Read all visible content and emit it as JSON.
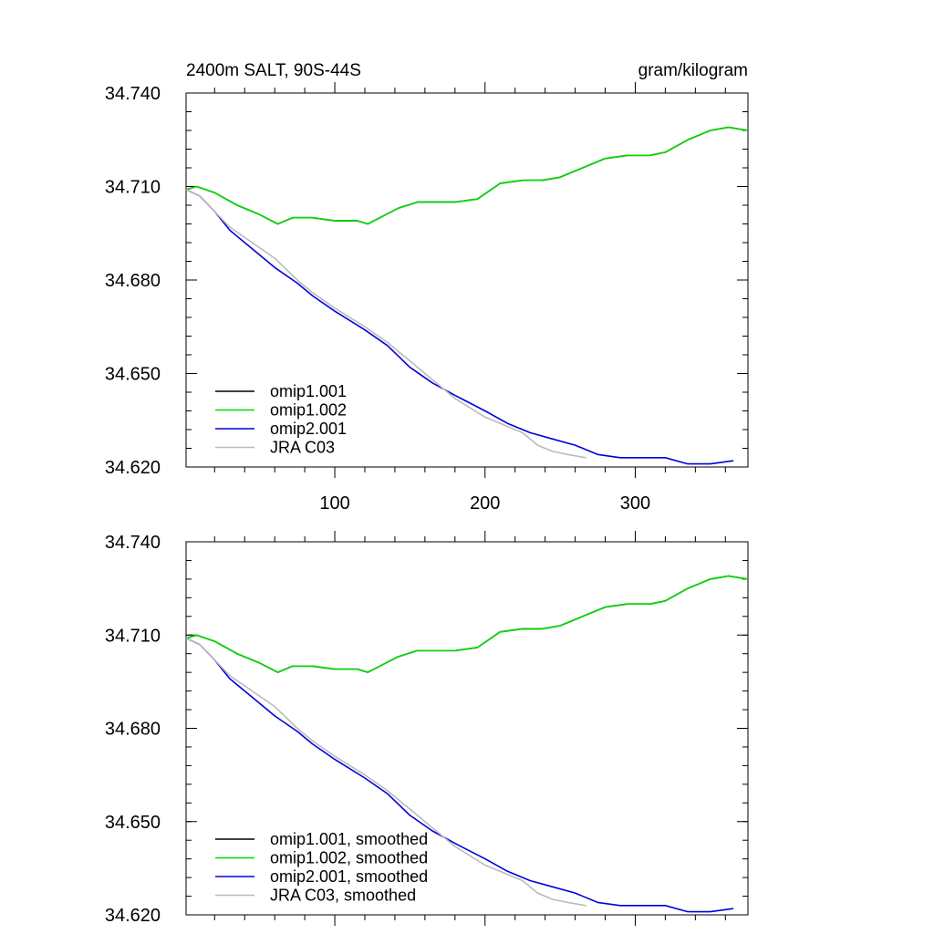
{
  "chart_data": [
    {
      "type": "line",
      "title_left": "2400m SALT, 90S-44S",
      "title_right": "gram/kilogram",
      "xlim": [
        1,
        375
      ],
      "ylim": [
        34.62,
        34.74
      ],
      "x_ticks": [
        100,
        200,
        300
      ],
      "x_tick_labels": [
        "100",
        "200",
        "300"
      ],
      "y_ticks": [
        34.62,
        34.65,
        34.68,
        34.71,
        34.74
      ],
      "y_tick_labels": [
        "34.620",
        "34.650",
        "34.680",
        "34.710",
        "34.740"
      ],
      "legend_position": "bottom-left",
      "series": [
        {
          "name": "omip1.001",
          "color": "#000000",
          "x": [
            1,
            8,
            20,
            35,
            50,
            62,
            72,
            85,
            100,
            115,
            122,
            130,
            142,
            155,
            170,
            180,
            195,
            210,
            225,
            238,
            250,
            265,
            280,
            295,
            310,
            320,
            335,
            350,
            362,
            375
          ],
          "y": [
            34.709,
            34.71,
            34.708,
            34.704,
            34.701,
            34.698,
            34.7,
            34.7,
            34.699,
            34.699,
            34.698,
            34.7,
            34.703,
            34.705,
            34.705,
            34.705,
            34.706,
            34.711,
            34.712,
            34.712,
            34.713,
            34.716,
            34.719,
            34.72,
            34.72,
            34.721,
            34.725,
            34.728,
            34.729,
            34.728
          ]
        },
        {
          "name": "omip1.002",
          "color": "#00dd00",
          "x": [
            1,
            8,
            20,
            35,
            50,
            62,
            72,
            85,
            100,
            115,
            122,
            130,
            142,
            155,
            170,
            180,
            195,
            210,
            225,
            238,
            250,
            265,
            280,
            295,
            310,
            320,
            335,
            350,
            362,
            375
          ],
          "y": [
            34.709,
            34.71,
            34.708,
            34.704,
            34.701,
            34.698,
            34.7,
            34.7,
            34.699,
            34.699,
            34.698,
            34.7,
            34.703,
            34.705,
            34.705,
            34.705,
            34.706,
            34.711,
            34.712,
            34.712,
            34.713,
            34.716,
            34.719,
            34.72,
            34.72,
            34.721,
            34.725,
            34.728,
            34.729,
            34.728
          ]
        },
        {
          "name": "omip2.001",
          "color": "#0000dd",
          "x": [
            1,
            10,
            20,
            30,
            45,
            60,
            75,
            85,
            100,
            120,
            135,
            150,
            165,
            180,
            200,
            215,
            230,
            245,
            260,
            275,
            290,
            305,
            320,
            335,
            350,
            365
          ],
          "y": [
            34.709,
            34.707,
            34.702,
            34.696,
            34.69,
            34.684,
            34.679,
            34.675,
            34.67,
            34.664,
            34.659,
            34.652,
            34.647,
            34.643,
            34.638,
            34.634,
            34.631,
            34.629,
            34.627,
            34.624,
            34.623,
            34.623,
            34.623,
            34.621,
            34.621,
            34.622
          ]
        },
        {
          "name": "JRA C03",
          "color": "#bbbbbb",
          "x": [
            1,
            10,
            20,
            30,
            45,
            60,
            75,
            85,
            100,
            120,
            135,
            150,
            165,
            180,
            200,
            215,
            225,
            235,
            245,
            255,
            267
          ],
          "y": [
            34.709,
            34.707,
            34.702,
            34.697,
            34.692,
            34.687,
            34.68,
            34.676,
            34.671,
            34.665,
            34.66,
            34.654,
            34.648,
            34.642,
            34.636,
            34.633,
            34.631,
            34.627,
            34.625,
            34.624,
            34.623
          ]
        }
      ]
    },
    {
      "type": "line",
      "xlim": [
        1,
        375
      ],
      "ylim": [
        34.62,
        34.74
      ],
      "x_ticks": [
        100,
        200,
        300
      ],
      "y_ticks": [
        34.62,
        34.65,
        34.68,
        34.71,
        34.74
      ],
      "y_tick_labels": [
        "34.620",
        "34.650",
        "34.680",
        "34.710",
        "34.740"
      ],
      "legend_position": "bottom-left",
      "series": [
        {
          "name": "omip1.001, smoothed",
          "color": "#000000",
          "x": [
            1,
            8,
            20,
            35,
            50,
            62,
            72,
            85,
            100,
            115,
            122,
            130,
            142,
            155,
            170,
            180,
            195,
            210,
            225,
            238,
            250,
            265,
            280,
            295,
            310,
            320,
            335,
            350,
            362,
            375
          ],
          "y": [
            34.709,
            34.71,
            34.708,
            34.704,
            34.701,
            34.698,
            34.7,
            34.7,
            34.699,
            34.699,
            34.698,
            34.7,
            34.703,
            34.705,
            34.705,
            34.705,
            34.706,
            34.711,
            34.712,
            34.712,
            34.713,
            34.716,
            34.719,
            34.72,
            34.72,
            34.721,
            34.725,
            34.728,
            34.729,
            34.728
          ]
        },
        {
          "name": "omip1.002, smoothed",
          "color": "#00dd00",
          "x": [
            1,
            8,
            20,
            35,
            50,
            62,
            72,
            85,
            100,
            115,
            122,
            130,
            142,
            155,
            170,
            180,
            195,
            210,
            225,
            238,
            250,
            265,
            280,
            295,
            310,
            320,
            335,
            350,
            362,
            375
          ],
          "y": [
            34.709,
            34.71,
            34.708,
            34.704,
            34.701,
            34.698,
            34.7,
            34.7,
            34.699,
            34.699,
            34.698,
            34.7,
            34.703,
            34.705,
            34.705,
            34.705,
            34.706,
            34.711,
            34.712,
            34.712,
            34.713,
            34.716,
            34.719,
            34.72,
            34.72,
            34.721,
            34.725,
            34.728,
            34.729,
            34.728
          ]
        },
        {
          "name": "omip2.001, smoothed",
          "color": "#0000dd",
          "x": [
            1,
            10,
            20,
            30,
            45,
            60,
            75,
            85,
            100,
            120,
            135,
            150,
            165,
            180,
            200,
            215,
            230,
            245,
            260,
            275,
            290,
            305,
            320,
            335,
            350,
            365
          ],
          "y": [
            34.709,
            34.707,
            34.702,
            34.696,
            34.69,
            34.684,
            34.679,
            34.675,
            34.67,
            34.664,
            34.659,
            34.652,
            34.647,
            34.643,
            34.638,
            34.634,
            34.631,
            34.629,
            34.627,
            34.624,
            34.623,
            34.623,
            34.623,
            34.621,
            34.621,
            34.622
          ]
        },
        {
          "name": "JRA C03, smoothed",
          "color": "#bbbbbb",
          "x": [
            1,
            10,
            20,
            30,
            45,
            60,
            75,
            85,
            100,
            120,
            135,
            150,
            165,
            180,
            200,
            215,
            225,
            235,
            245,
            255,
            267
          ],
          "y": [
            34.709,
            34.707,
            34.702,
            34.697,
            34.692,
            34.687,
            34.68,
            34.676,
            34.671,
            34.665,
            34.66,
            34.654,
            34.648,
            34.642,
            34.636,
            34.633,
            34.631,
            34.627,
            34.625,
            34.624,
            34.623
          ]
        }
      ]
    }
  ]
}
